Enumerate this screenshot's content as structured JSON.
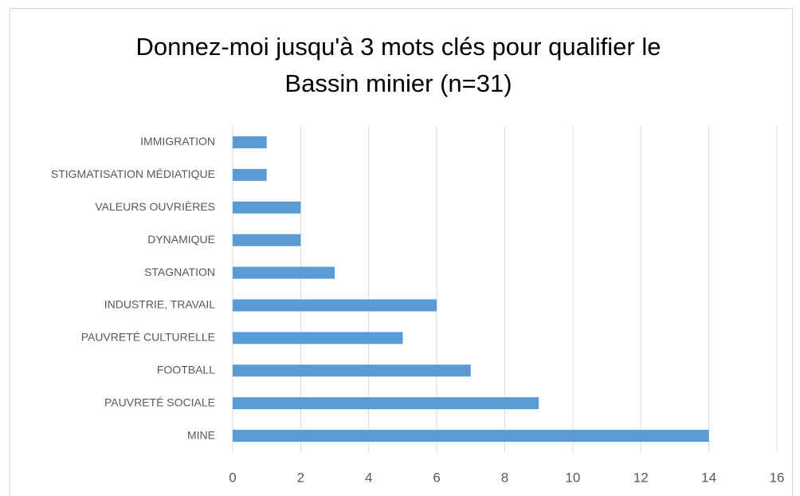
{
  "chart_data": {
    "type": "barh",
    "title": "Donnez-moi jusqu'à 3 mots clés pour qualifier le Bassin minier (n=31)",
    "categories": [
      "IMMIGRATION",
      "STIGMATISATION MÉDIATIQUE",
      "VALEURS OUVRIÈRES",
      "DYNAMIQUE",
      "STAGNATION",
      "INDUSTRIE, TRAVAIL",
      "PAUVRETÉ CULTURELLE",
      "FOOTBALL",
      "PAUVRETÉ SOCIALE",
      "MINE"
    ],
    "values": [
      1,
      1,
      2,
      2,
      3,
      6,
      5,
      7,
      9,
      14
    ],
    "color": "#5b9bd5",
    "xlim": [
      0,
      16
    ],
    "xticks": [
      0,
      2,
      4,
      6,
      8,
      10,
      12,
      14,
      16
    ],
    "grid": true
  }
}
